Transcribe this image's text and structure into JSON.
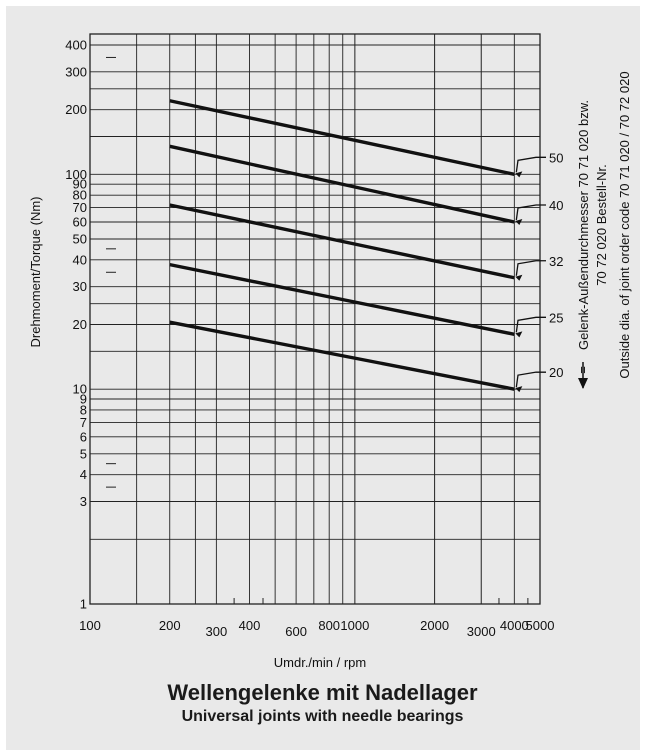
{
  "caption": {
    "title_de": "Wellengelenke mit Nadellager",
    "title_en": "Universal joints with needle bearings"
  },
  "chart_data": {
    "type": "line",
    "xscale": "log",
    "yscale": "log",
    "xlim": [
      100,
      5000
    ],
    "ylim": [
      1,
      450
    ],
    "grid": true,
    "xlabel": "Umdr./min / rpm",
    "ylabel": "Drehmoment/Torque  (Nm)",
    "right_label_line1": "Gelenk-Außendurchmesser 70 71 020 bzw.",
    "right_label_line2": "70 72 020 Bestell-Nr.",
    "right_label_line3": "Outside dia. of joint order code 70 71 020 / 70 72 020",
    "series_marker": "=",
    "x_ticks": [
      "100",
      "200",
      "300",
      "400",
      "600",
      "800",
      "1000",
      "2000",
      "3000",
      "4000",
      "5000"
    ],
    "y_ticks": [
      "1",
      "3",
      "4",
      "5",
      "6",
      "7",
      "8",
      "9",
      "10",
      "20",
      "30",
      "40",
      "50",
      "60",
      "70",
      "80",
      "90",
      "100",
      "200",
      "300",
      "400"
    ],
    "series": [
      {
        "name": "50",
        "x": [
          200,
          4000
        ],
        "y": [
          220,
          100
        ]
      },
      {
        "name": "40",
        "x": [
          200,
          4000
        ],
        "y": [
          135,
          60
        ]
      },
      {
        "name": "32",
        "x": [
          200,
          4000
        ],
        "y": [
          72,
          33
        ]
      },
      {
        "name": "25",
        "x": [
          200,
          4000
        ],
        "y": [
          38,
          18
        ]
      },
      {
        "name": "20",
        "x": [
          200,
          4000
        ],
        "y": [
          20.5,
          10
        ]
      }
    ],
    "colors": {
      "background": "#e9e9e9",
      "line": "#111111",
      "grid": "#222222"
    }
  }
}
